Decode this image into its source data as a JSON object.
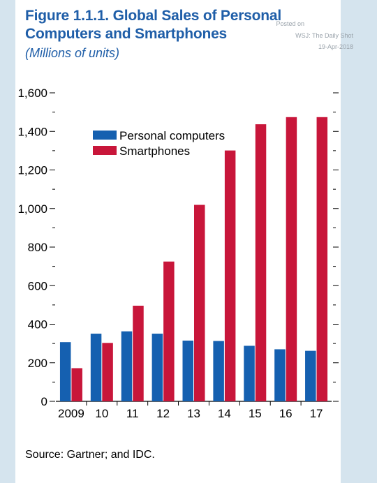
{
  "header": {
    "title": "Figure 1.1.1.  Global Sales of Personal\nComputers and Smartphones",
    "subtitle": "(Millions of units)"
  },
  "watermark": {
    "posted_on": "Posted on",
    "source": "WSJ: The Daily Shot",
    "date": "19-Apr-2018"
  },
  "footer": {
    "source": "Source: Gartner; and IDC."
  },
  "colors": {
    "pc": "#1560b0",
    "smartphone": "#c8163a",
    "background": "#d5e4ee"
  },
  "chart_data": {
    "type": "bar",
    "title": "Figure 1.1.1.  Global Sales of Personal Computers and Smartphones",
    "ylabel": "",
    "xlabel": "",
    "categories": [
      "2009",
      "10",
      "11",
      "12",
      "13",
      "14",
      "15",
      "16",
      "17"
    ],
    "ylim": [
      0,
      1600
    ],
    "yticks": [
      0,
      200,
      400,
      600,
      800,
      1000,
      1200,
      1400,
      1600
    ],
    "ytick_labels": [
      "0",
      "200",
      "400",
      "600",
      "800",
      "1,000",
      "1,200",
      "1,400",
      "1,600"
    ],
    "legend_position": "top-left",
    "grid": false,
    "series": [
      {
        "name": "Personal computers",
        "color": "#1560b0",
        "values": [
          307,
          351,
          363,
          351,
          315,
          313,
          288,
          270,
          262
        ]
      },
      {
        "name": "Smartphones",
        "color": "#c8163a",
        "values": [
          172,
          303,
          496,
          725,
          1019,
          1301,
          1437,
          1474,
          1474
        ]
      }
    ]
  }
}
